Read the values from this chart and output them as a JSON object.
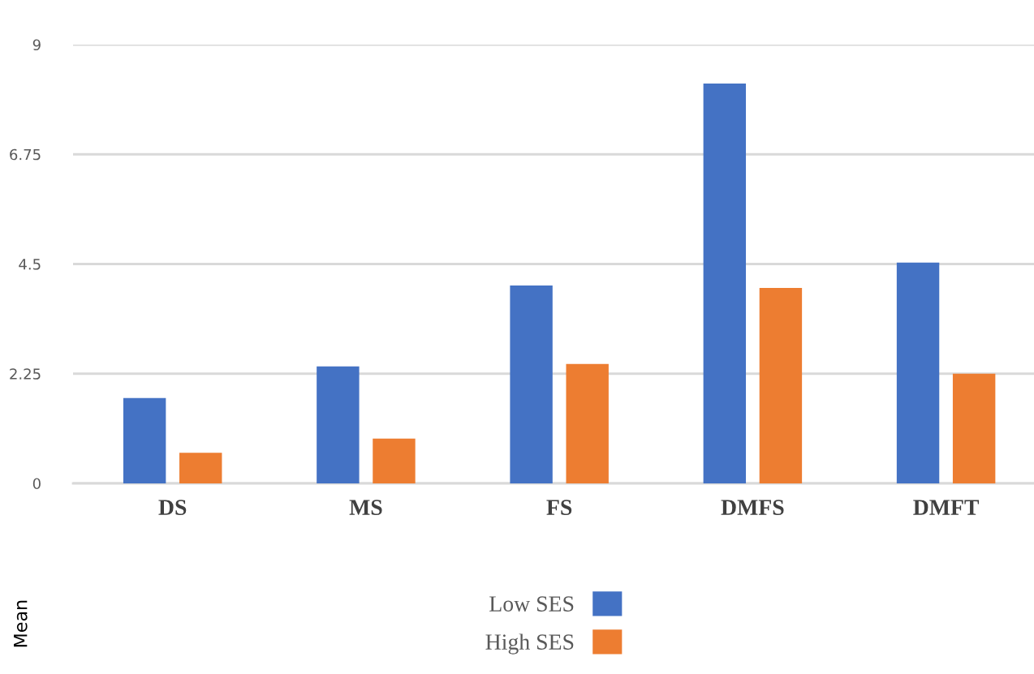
{
  "chart_data": {
    "type": "bar",
    "ylabel": "Mean",
    "categories": [
      "DS",
      "MS",
      "FS",
      "DMFS",
      "DMFT"
    ],
    "series": [
      {
        "name": "Low SES",
        "color": "#4472c4",
        "values": [
          1.75,
          2.4,
          4.06,
          8.2,
          4.53
        ]
      },
      {
        "name": "High SES",
        "color": "#ed7d31",
        "values": [
          0.63,
          0.92,
          2.45,
          4.01,
          2.25
        ]
      }
    ],
    "ylim": [
      0,
      9
    ],
    "yticks": [
      0,
      2.25,
      4.5,
      6.75,
      9
    ],
    "grid": "y",
    "legend": "bottom"
  }
}
